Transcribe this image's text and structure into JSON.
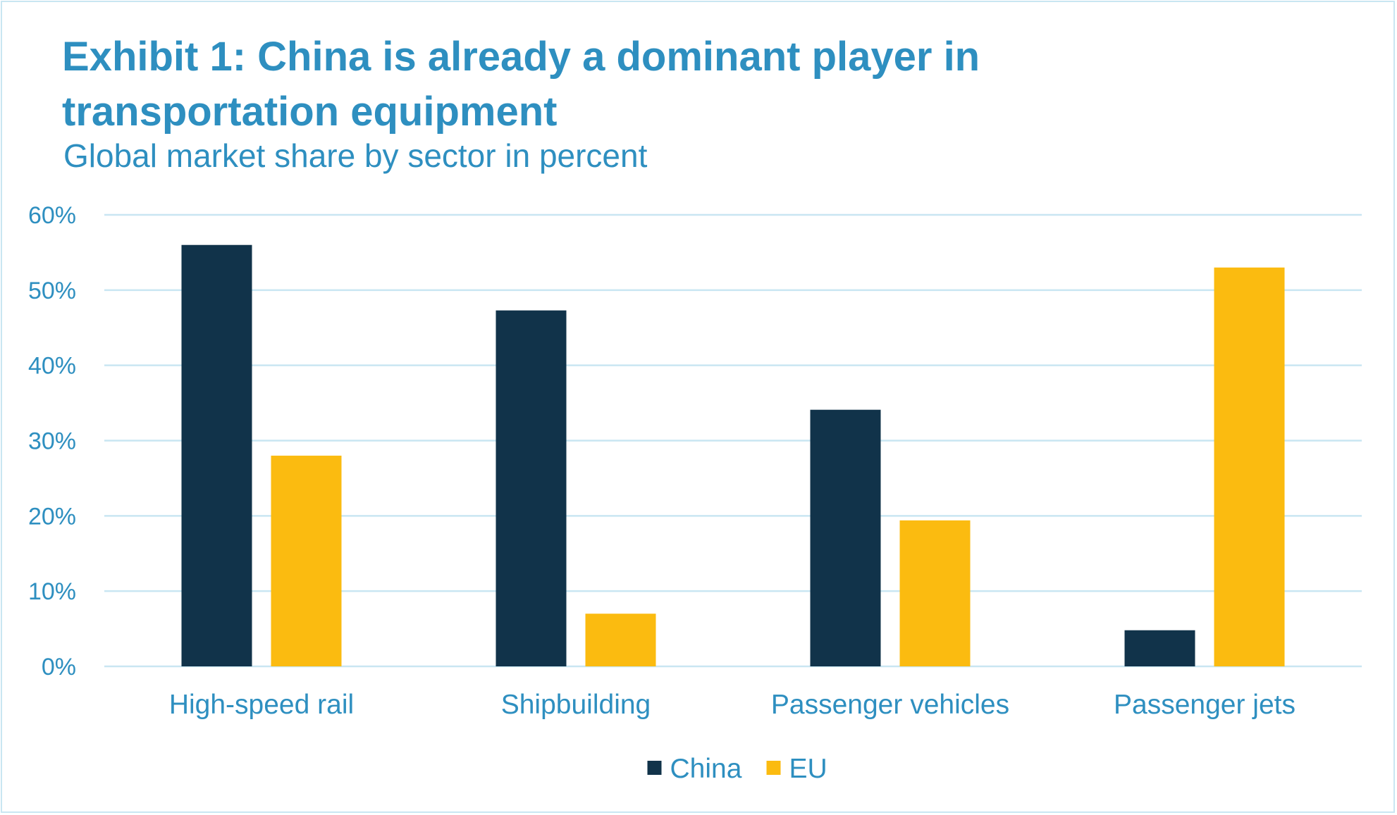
{
  "header": {
    "title": "Exhibit 1:  China is already a dominant player in transportation equipment",
    "subtitle": "Global market share by sector in percent"
  },
  "colors": {
    "accent": "#2e8fc0",
    "gridline": "#c9e6f2",
    "china": "#11334a",
    "eu": "#fbbb10"
  },
  "chart_data": {
    "type": "bar",
    "title": "Exhibit 1:  China is already a dominant player in transportation equipment",
    "subtitle": "Global market share by sector in percent",
    "xlabel": "",
    "ylabel": "",
    "categories": [
      "High-speed rail",
      "Shipbuilding",
      "Passenger vehicles",
      "Passenger jets"
    ],
    "series": [
      {
        "name": "China",
        "color": "#11334a",
        "values": [
          56,
          47.3,
          34.1,
          4.8
        ]
      },
      {
        "name": "EU",
        "color": "#fbbb10",
        "values": [
          28,
          7,
          19.4,
          53
        ]
      }
    ],
    "ylim": [
      0,
      60
    ],
    "yticks": [
      0,
      10,
      20,
      30,
      40,
      50,
      60
    ],
    "ytick_labels": [
      "0%",
      "10%",
      "20%",
      "30%",
      "40%",
      "50%",
      "60%"
    ],
    "grid": true,
    "legend_position": "bottom-center"
  }
}
